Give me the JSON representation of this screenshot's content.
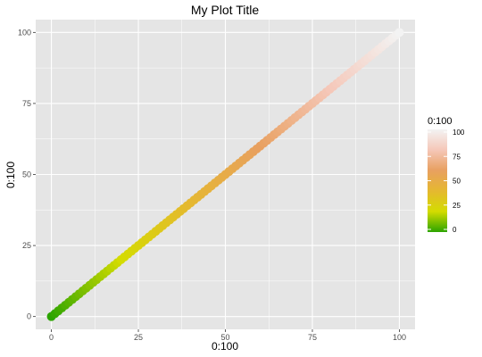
{
  "chart_data": {
    "type": "scatter",
    "title": "My Plot Title",
    "xlabel": "0:100",
    "ylabel": "0:100",
    "xlim": [
      -4.5,
      104.5
    ],
    "ylim": [
      -4.5,
      104.5
    ],
    "xticks": [
      "0",
      "25",
      "50",
      "75",
      "100"
    ],
    "yticks": [
      "0",
      "25",
      "50",
      "75",
      "100"
    ],
    "grid": true,
    "series": [
      {
        "x_from": 0,
        "x_to": 100,
        "step": 1,
        "y_equals_x": true,
        "color_by": "value"
      }
    ],
    "legend": {
      "title": "0:100",
      "placement": "right",
      "labels": [
        "100",
        "75",
        "50",
        "25",
        "0"
      ],
      "gradient_colors": [
        "#2ca400",
        "#d4dc00",
        "#e5b830",
        "#e8a060",
        "#f5c7b8",
        "#f3f3f3"
      ]
    }
  },
  "colors": {
    "panel_background": "#e5e5e5",
    "grid_major": "#ffffff"
  }
}
